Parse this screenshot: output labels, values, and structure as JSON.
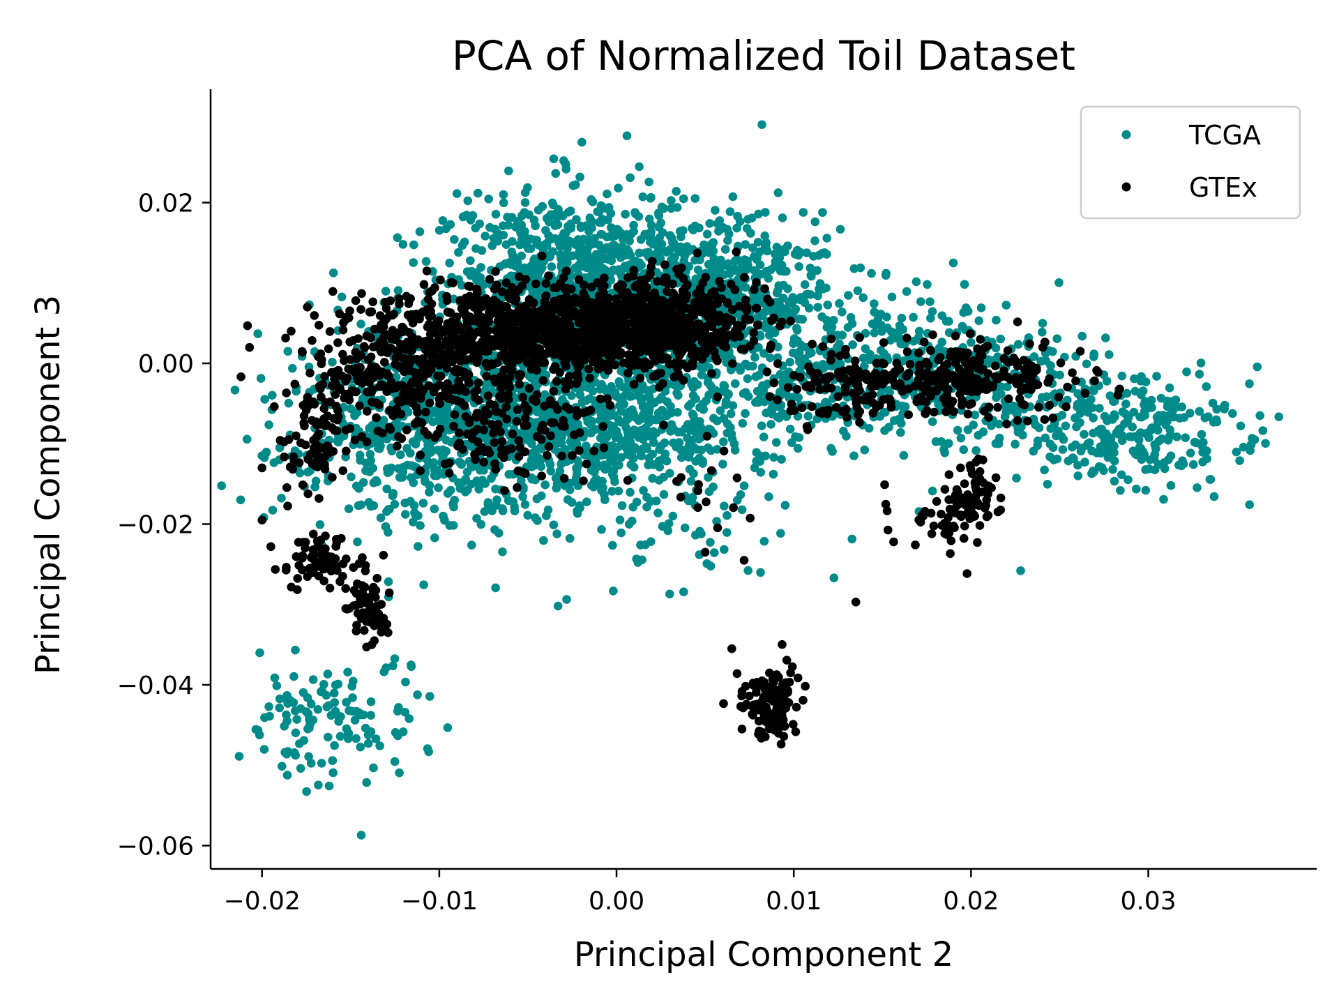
{
  "chart_data": {
    "type": "scatter",
    "title": "PCA of Normalized Toil Dataset",
    "xlabel": "Principal Component 2",
    "ylabel": "Principal Component 3",
    "xlim": [
      -0.0229,
      0.0395
    ],
    "ylim": [
      -0.0629,
      0.0341
    ],
    "xticks": [
      -0.02,
      -0.01,
      0.0,
      0.01,
      0.02,
      0.03
    ],
    "xtick_labels": [
      "−0.02",
      "−0.01",
      "0.00",
      "0.01",
      "0.02",
      "0.03"
    ],
    "yticks": [
      0.02,
      0.0,
      -0.02,
      -0.04,
      -0.06
    ],
    "ytick_labels": [
      "0.02",
      "0.00",
      "−0.02",
      "−0.04",
      "−0.06"
    ],
    "grid": false,
    "legend_position": "upper right",
    "series": [
      {
        "name": "TCGA",
        "color": "#008b8b",
        "clusters": [
          {
            "x": -0.002,
            "y": 0.012,
            "sx": 0.004,
            "sy": 0.005,
            "n": 700
          },
          {
            "x": 0.007,
            "y": 0.008,
            "sx": 0.003,
            "sy": 0.005,
            "n": 400
          },
          {
            "x": -0.003,
            "y": -0.008,
            "sx": 0.004,
            "sy": 0.004,
            "n": 450
          },
          {
            "x": -0.01,
            "y": -0.005,
            "sx": 0.004,
            "sy": 0.005,
            "n": 450
          },
          {
            "x": 0.0,
            "y": 0.0,
            "sx": 0.008,
            "sy": 0.007,
            "n": 500
          },
          {
            "x": 0.004,
            "y": -0.005,
            "sx": 0.004,
            "sy": 0.005,
            "n": 200
          },
          {
            "x": -0.01,
            "y": -0.014,
            "sx": 0.005,
            "sy": 0.004,
            "n": 200
          },
          {
            "x": 0.02,
            "y": -0.002,
            "sx": 0.004,
            "sy": 0.004,
            "n": 300
          },
          {
            "x": 0.029,
            "y": -0.009,
            "sx": 0.0035,
            "sy": 0.0035,
            "n": 260
          },
          {
            "x": 0.013,
            "y": -0.001,
            "sx": 0.003,
            "sy": 0.004,
            "n": 150
          },
          {
            "x": -0.0165,
            "y": -0.045,
            "sx": 0.002,
            "sy": 0.004,
            "n": 110
          },
          {
            "x": -0.012,
            "y": -0.04,
            "sx": 0.001,
            "sy": 0.005,
            "n": 20
          },
          {
            "x": 0.002,
            "y": -0.02,
            "sx": 0.005,
            "sy": 0.004,
            "n": 60
          }
        ],
        "points": [
          [
            0.0082,
            0.0297
          ],
          [
            0.019,
            0.0125
          ],
          [
            -0.019,
            -0.0105
          ],
          [
            0.0363,
            -0.0065
          ],
          [
            0.036,
            -0.0095
          ],
          [
            -0.0144,
            -0.0587
          ],
          [
            -0.0033,
            -0.0302
          ],
          [
            0.003,
            -0.0287
          ],
          [
            0.0228,
            -0.0258
          ]
        ]
      },
      {
        "name": "GTEx",
        "color": "#000000",
        "clusters": [
          {
            "x": -0.004,
            "y": 0.004,
            "sx": 0.005,
            "sy": 0.003,
            "n": 900
          },
          {
            "x": 0.002,
            "y": 0.005,
            "sx": 0.003,
            "sy": 0.003,
            "n": 500
          },
          {
            "x": -0.012,
            "y": -0.001,
            "sx": 0.003,
            "sy": 0.003,
            "n": 250
          },
          {
            "x": -0.006,
            "y": -0.008,
            "sx": 0.003,
            "sy": 0.003,
            "n": 150
          },
          {
            "x": -0.017,
            "y": -0.009,
            "sx": 0.001,
            "sy": 0.003,
            "n": 80
          },
          {
            "x": -0.0165,
            "y": -0.0245,
            "sx": 0.001,
            "sy": 0.0015,
            "n": 70
          },
          {
            "x": -0.014,
            "y": -0.0305,
            "sx": 0.0006,
            "sy": 0.002,
            "n": 60
          },
          {
            "x": 0.0088,
            "y": -0.042,
            "sx": 0.0008,
            "sy": 0.0025,
            "n": 120
          },
          {
            "x": 0.02,
            "y": -0.002,
            "sx": 0.003,
            "sy": 0.0025,
            "n": 250
          },
          {
            "x": 0.013,
            "y": -0.003,
            "sx": 0.002,
            "sy": 0.002,
            "n": 100
          },
          {
            "x": 0.02,
            "y": -0.017,
            "sx": 0.001,
            "sy": 0.0025,
            "n": 70
          },
          {
            "x": 0.017,
            "y": -0.02,
            "sx": 0.002,
            "sy": 0.002,
            "n": 30
          },
          {
            "x": 0.005,
            "y": -0.016,
            "sx": 0.002,
            "sy": 0.004,
            "n": 15
          }
        ],
        "points": [
          [
            -0.02,
            -0.013
          ],
          [
            -0.02,
            -0.0195
          ],
          [
            -0.0195,
            -0.0228
          ],
          [
            0.0135,
            -0.0297
          ],
          [
            -0.0107,
            0.0115
          ],
          [
            0.0065,
            -0.0355
          ],
          [
            0.0072,
            -0.0245
          ],
          [
            0.005,
            -0.0235
          ]
        ]
      }
    ]
  }
}
